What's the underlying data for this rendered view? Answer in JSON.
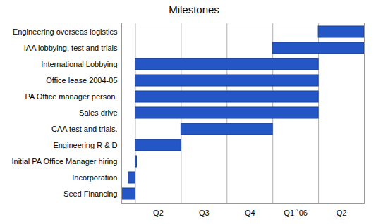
{
  "chart_data": {
    "type": "gantt",
    "title": "Milestones",
    "orientation": "horizontal",
    "categories": [
      "Q2",
      "Q3",
      "Q4",
      "Q1 `06",
      "Q2"
    ],
    "tasks": [
      "Engineering overseas logistics",
      "IAA lobbying, test and trials",
      "International Lobbying",
      "Office lease 2004-05",
      "PA Office manager person.",
      "Sales drive",
      "CAA test and trials.",
      "Engineering R & D",
      "Initial PA Office Manager hiring",
      "Incorporation",
      "Seed Financing"
    ],
    "start": [
      4.0,
      3.0,
      0.0,
      0.0,
      0.0,
      0.0,
      1.0,
      0.0,
      0.0,
      -0.15,
      -0.3
    ],
    "end": [
      5.0,
      5.0,
      4.0,
      4.0,
      4.0,
      4.0,
      3.0,
      1.0,
      0.03,
      0.0,
      0.0
    ],
    "xlim": [
      -0.3,
      5
    ],
    "color": "#2457c5",
    "grid": true
  }
}
